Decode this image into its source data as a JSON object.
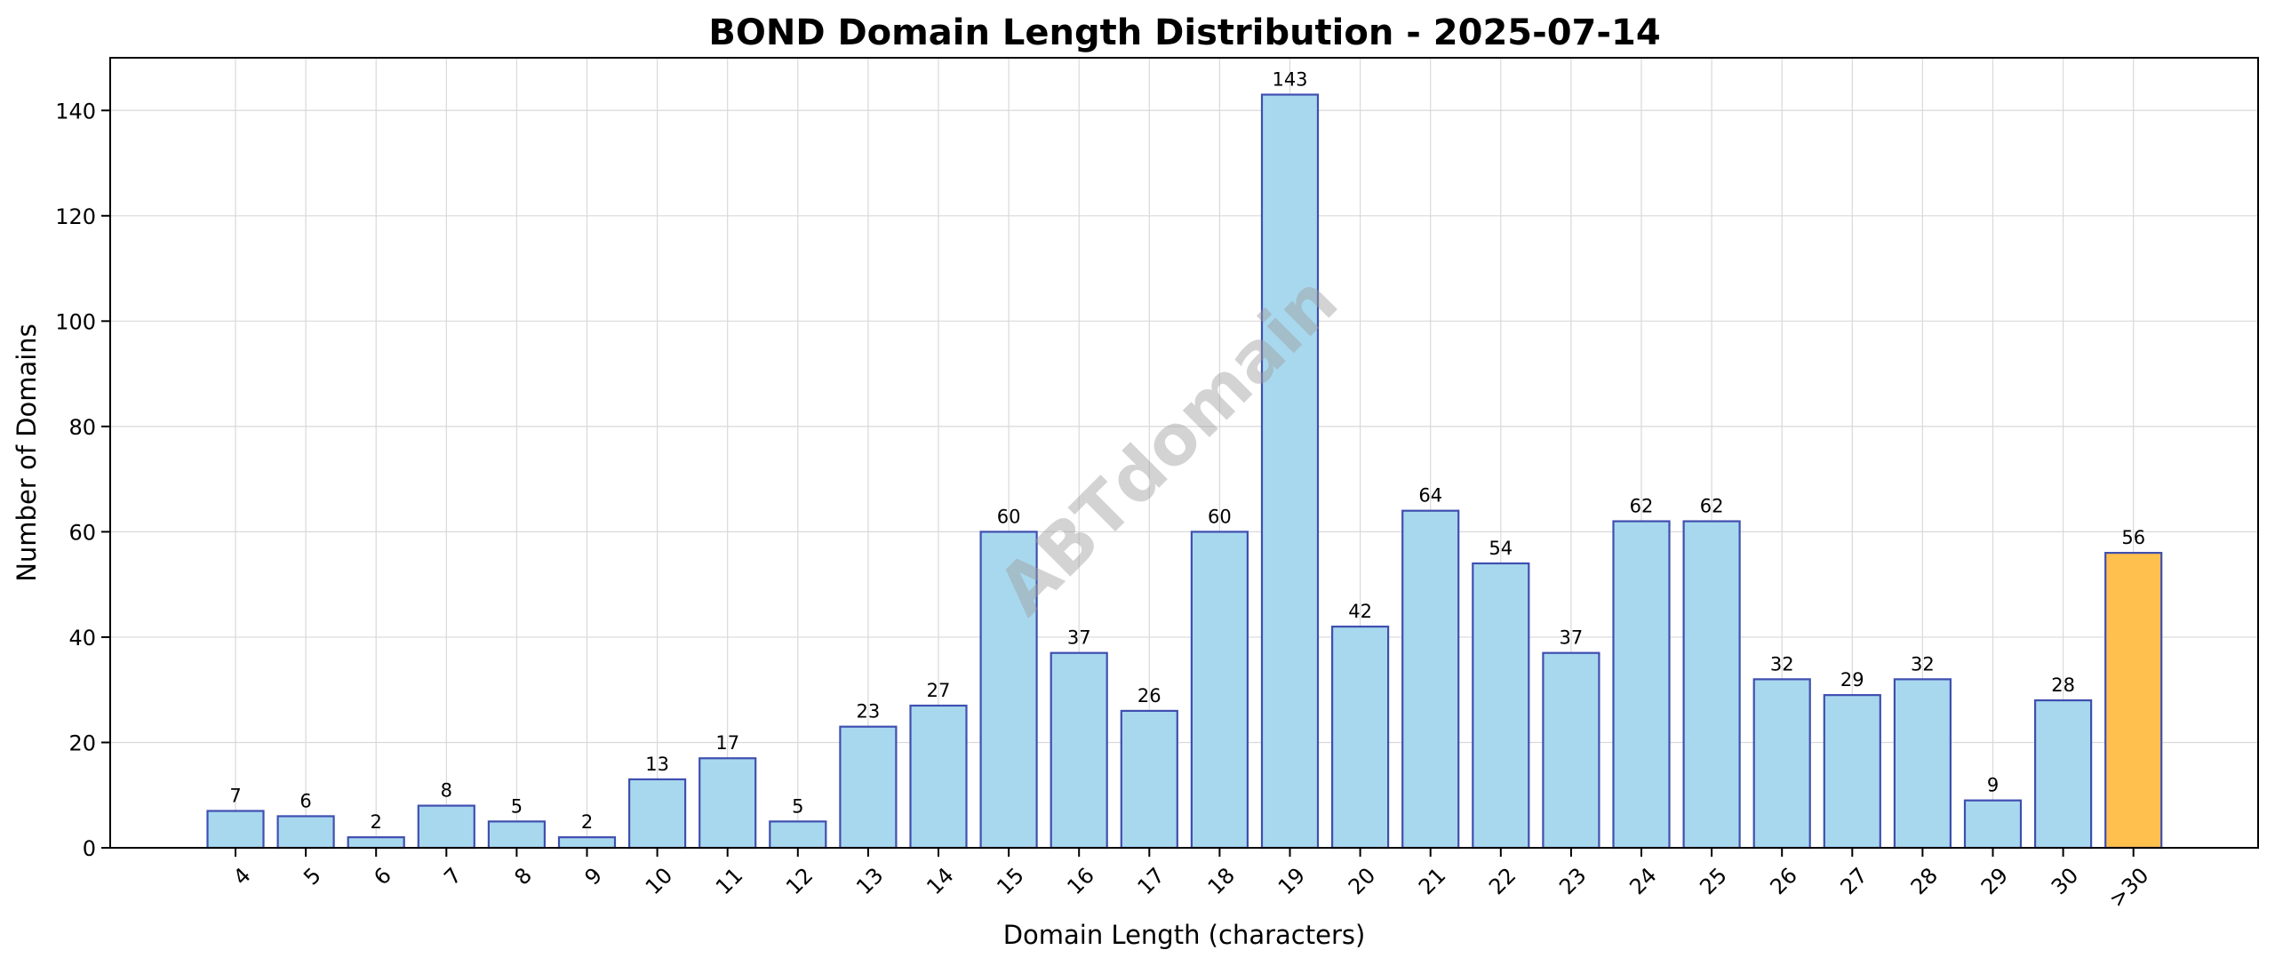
{
  "chart_data": {
    "type": "bar",
    "title": "BOND Domain Length Distribution - 2025-07-14",
    "xlabel": "Domain Length (characters)",
    "ylabel": "Number of Domains",
    "watermark": "ABTdomain",
    "categories": [
      "4",
      "5",
      "6",
      "7",
      "8",
      "9",
      "10",
      "11",
      "12",
      "13",
      "14",
      "15",
      "16",
      "17",
      "18",
      "19",
      "20",
      "21",
      "22",
      "23",
      "24",
      "25",
      "26",
      "27",
      "28",
      "29",
      "30",
      ">30"
    ],
    "values": [
      7,
      6,
      2,
      8,
      5,
      2,
      13,
      17,
      5,
      23,
      27,
      60,
      37,
      26,
      60,
      143,
      42,
      64,
      54,
      37,
      62,
      62,
      32,
      29,
      32,
      9,
      28,
      56
    ],
    "highlight_category": ">30",
    "ylim": [
      0,
      150
    ],
    "yticks": [
      0,
      20,
      40,
      60,
      80,
      100,
      120,
      140
    ],
    "grid": true,
    "legend": "none",
    "colors": {
      "bar_fill": "#a8d8ee",
      "bar_edge": "#3f4fb0",
      "highlight_fill": "#ffc04d",
      "highlight_edge": "#3f4fb0"
    }
  }
}
